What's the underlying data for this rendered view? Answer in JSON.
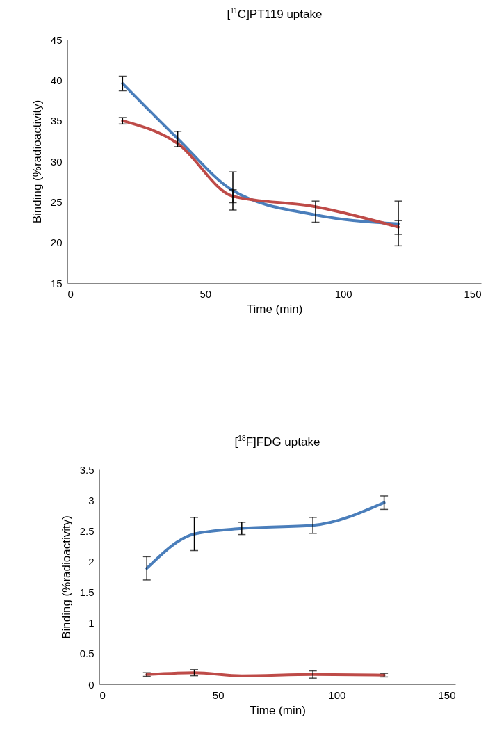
{
  "chart_data": [
    {
      "type": "line",
      "title": "[$^{11}$C]PT119 uptake",
      "xlabel": "Time (min)",
      "ylabel": "Binding (%radioactivity)",
      "x": [
        20,
        40,
        60,
        90,
        120
      ],
      "xlim": [
        0,
        150
      ],
      "xticks": [
        0,
        50,
        100,
        150
      ],
      "ylim": [
        15,
        45
      ],
      "yticks": [
        15,
        20,
        25,
        30,
        35,
        40,
        45
      ],
      "grid": false,
      "legend": false,
      "marker": "none",
      "line_style": "solid",
      "series": [
        {
          "color": "#4a7ebb",
          "values": [
            39.6,
            32.8,
            26.4,
            23.4,
            22.3
          ],
          "errors": [
            0.9,
            [
              31.8,
              33.7
            ],
            [
              24.0,
              28.7
            ],
            null,
            [
              19.6,
              25.1
            ]
          ]
        },
        {
          "color": "#be4b48",
          "values": [
            35.0,
            32.2,
            25.7,
            24.4,
            21.9
          ],
          "errors": [
            0.4,
            null,
            [
              24.9,
              26.5
            ],
            [
              22.5,
              25.1
            ],
            [
              21.0,
              22.7
            ]
          ]
        }
      ]
    },
    {
      "type": "line",
      "title": "[$^{18}$F]FDG uptake",
      "xlabel": "Time (min)",
      "ylabel": "Binding (%radioactivity)",
      "x": [
        20,
        40,
        60,
        90,
        120
      ],
      "xlim": [
        0,
        150
      ],
      "xticks": [
        0,
        50,
        100,
        150
      ],
      "ylim": [
        0,
        3.5
      ],
      "yticks": [
        0,
        0.5,
        1,
        1.5,
        2,
        2.5,
        3,
        3.5
      ],
      "grid": false,
      "legend": false,
      "marker": "none",
      "line_style": "solid",
      "series": [
        {
          "color": "#4a7ebb",
          "values": [
            1.89,
            2.45,
            2.54,
            2.59,
            2.96
          ],
          "errors": [
            0.19,
            0.27,
            0.1,
            0.13,
            0.11
          ]
        },
        {
          "color": "#be4b48",
          "values": [
            0.16,
            0.19,
            0.14,
            0.16,
            0.15
          ],
          "errors": [
            0.03,
            0.05,
            null,
            0.06,
            0.03
          ]
        }
      ]
    }
  ]
}
